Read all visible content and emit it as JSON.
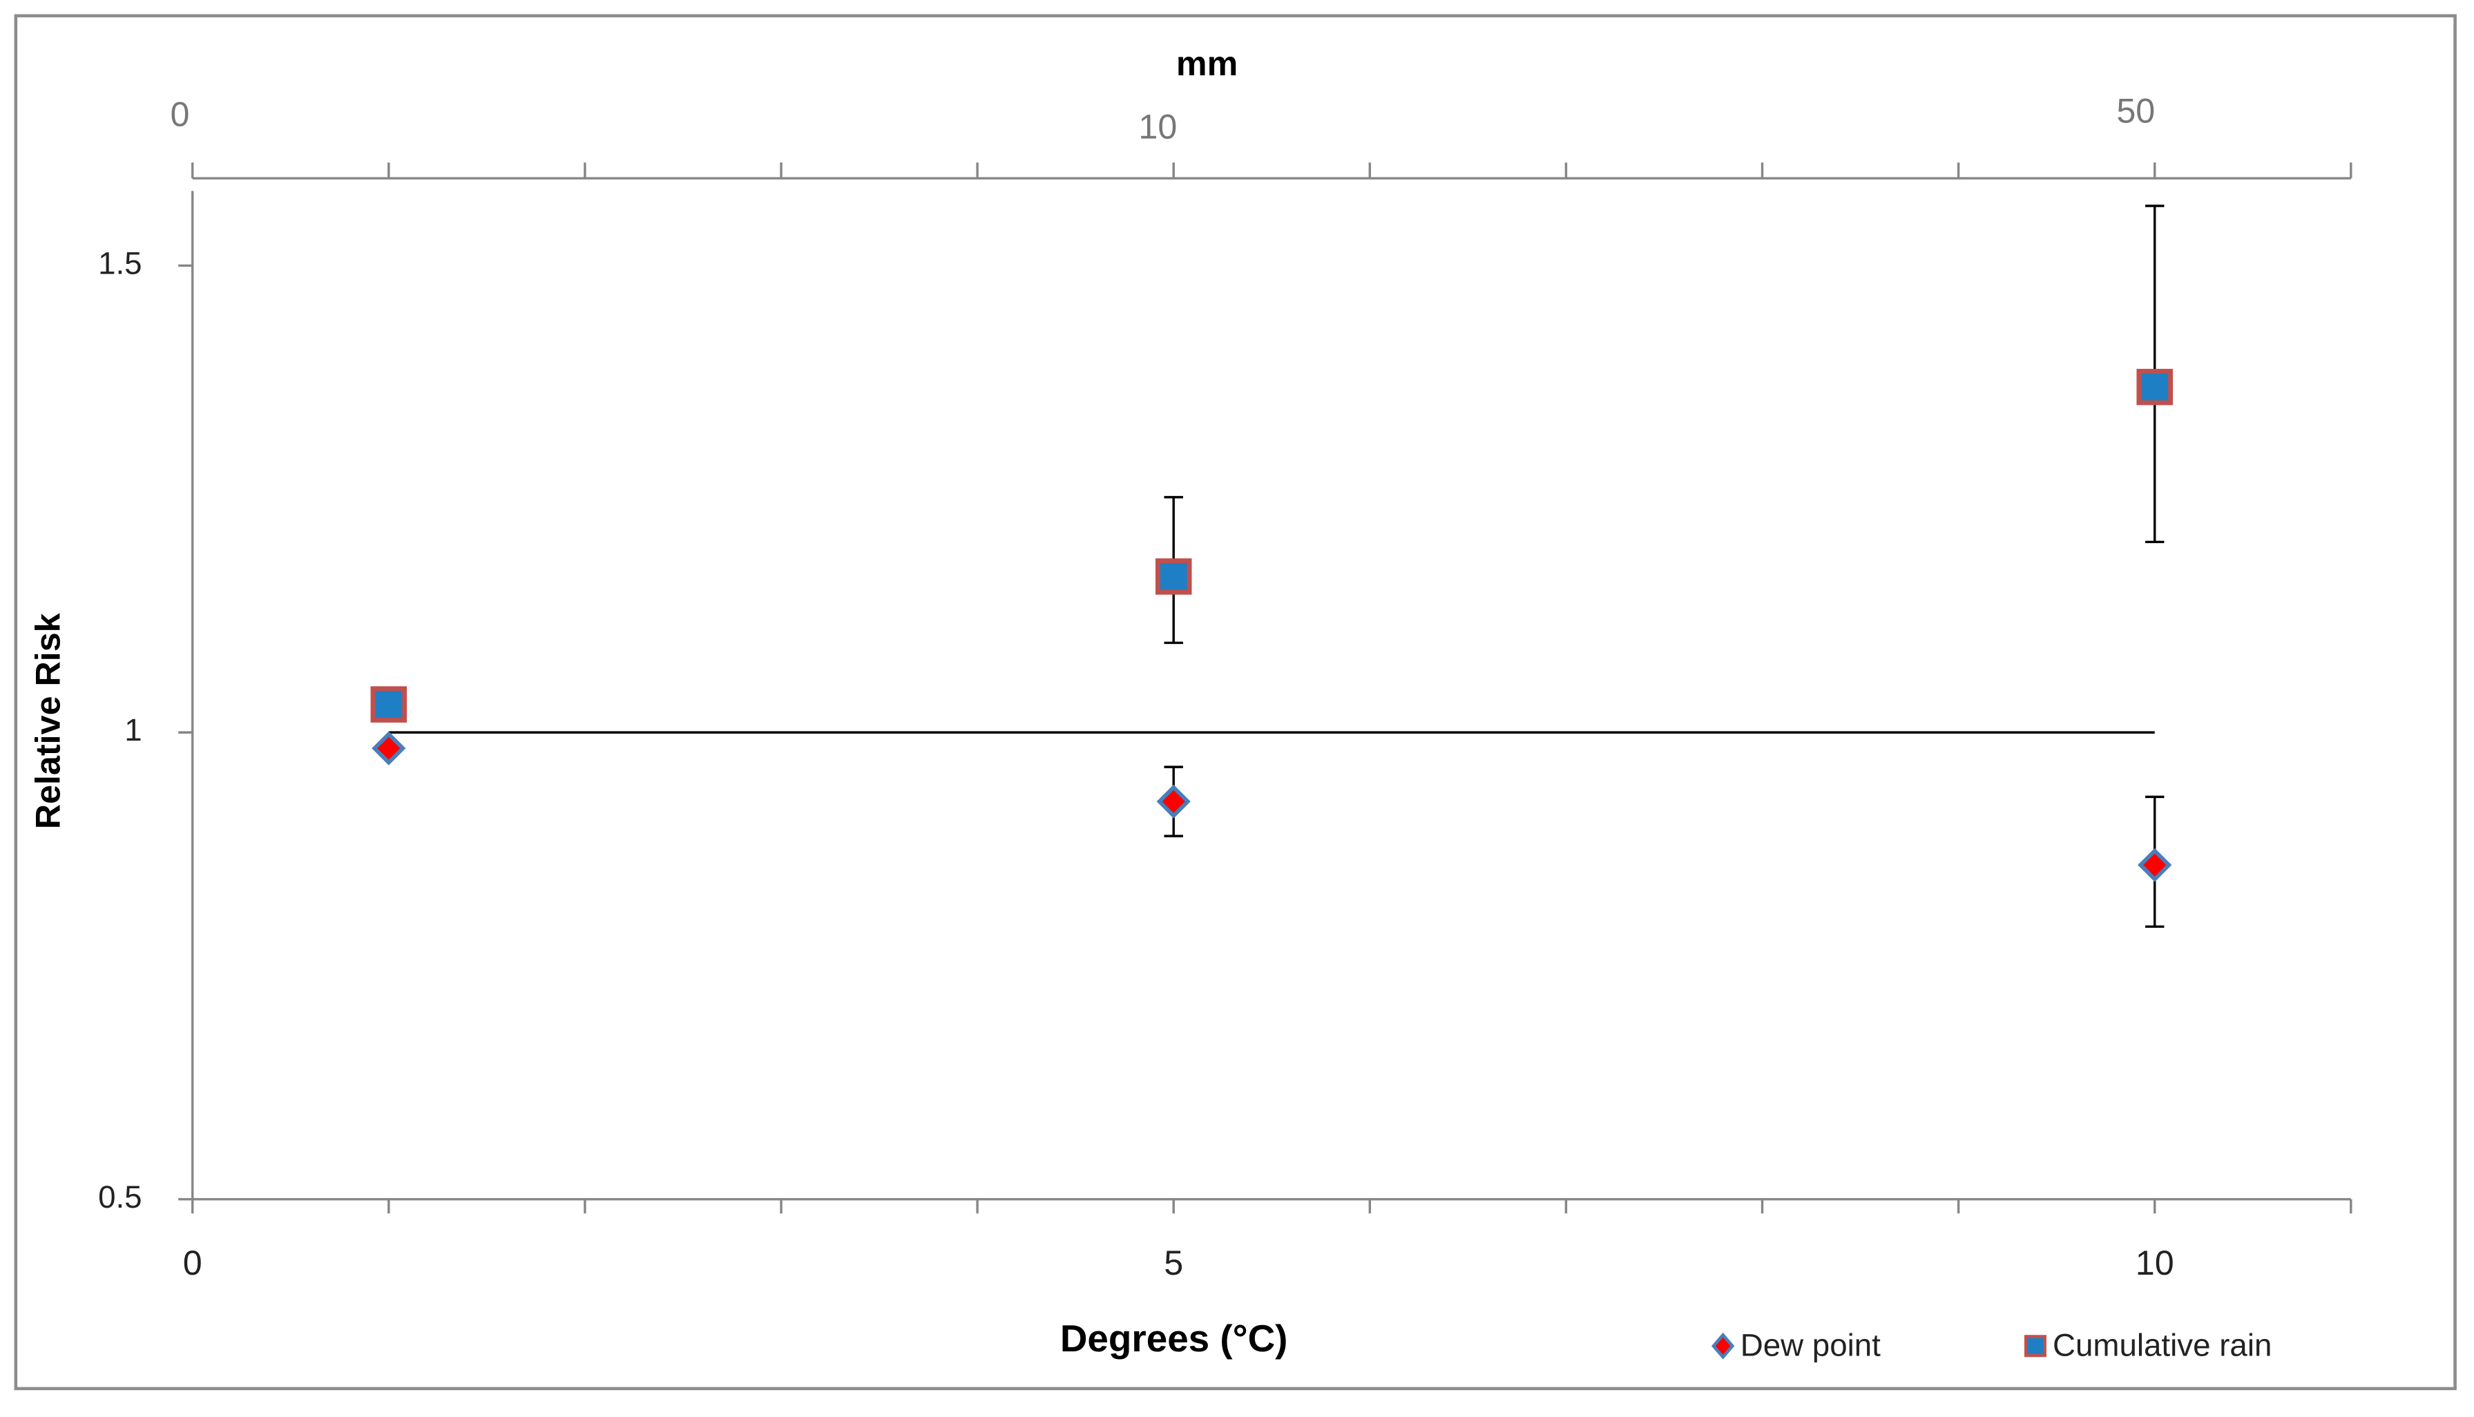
{
  "chart_data": {
    "type": "scatter",
    "xlabel": "Degrees (°C)",
    "x2label": "mm",
    "ylabel": "Relative Risk",
    "xlim": [
      0,
      11
    ],
    "xticks": [
      0,
      5,
      10
    ],
    "xminorticks": [
      0,
      1,
      2,
      3,
      4,
      5,
      6,
      7,
      8,
      9,
      10,
      11
    ],
    "x2lim": [
      0,
      11
    ],
    "x2ticks": [
      {
        "value": 0,
        "label": "0"
      },
      {
        "value": 5,
        "label": "10"
      },
      {
        "value": 10,
        "label": "50"
      }
    ],
    "ylim": [
      0.5,
      1.58
    ],
    "yticks": [
      0.5,
      1,
      1.5
    ],
    "reference_line": {
      "y": 1,
      "x": [
        1,
        10
      ]
    },
    "legend": "bottom-right",
    "series": [
      {
        "name": "Dew point",
        "marker": "diamond",
        "color": "#ff0000",
        "edgecolor": "#4a7ebb",
        "x": [
          1,
          5,
          10
        ],
        "values": [
          0.983,
          0.926,
          0.858
        ],
        "lower": [
          null,
          0.889,
          0.792
        ],
        "upper": [
          null,
          0.963,
          0.931
        ]
      },
      {
        "name": "Cumulative rain",
        "marker": "square",
        "color": "#1f7fc4",
        "edgecolor": "#c0504d",
        "x": [
          1,
          5,
          10
        ],
        "values": [
          1.03,
          1.167,
          1.37
        ],
        "lower": [
          null,
          1.096,
          1.204
        ],
        "upper": [
          null,
          1.252,
          1.564
        ]
      }
    ]
  }
}
